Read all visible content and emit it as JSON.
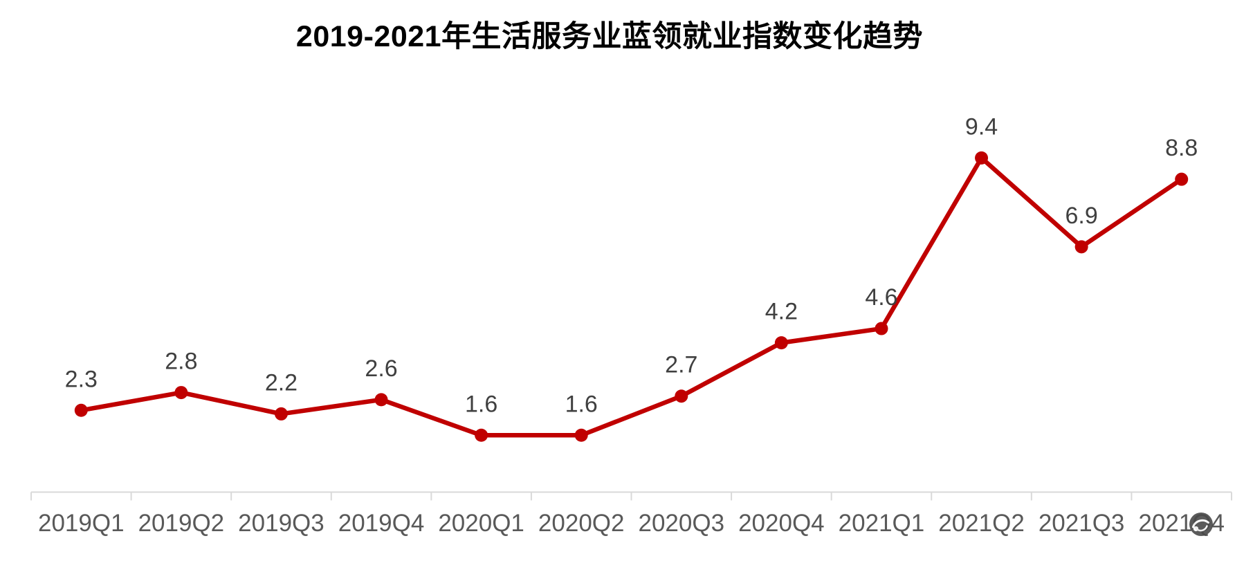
{
  "chart_data": {
    "type": "line",
    "title": "2019-2021年生活服务业蓝领就业指数变化趋势",
    "categories": [
      "2019Q1",
      "2019Q2",
      "2019Q3",
      "2019Q4",
      "2020Q1",
      "2020Q2",
      "2020Q3",
      "2020Q4",
      "2021Q1",
      "2021Q2",
      "2021Q3",
      "2021Q4"
    ],
    "values": [
      2.3,
      2.8,
      2.2,
      2.6,
      1.6,
      1.6,
      2.7,
      4.2,
      4.6,
      9.4,
      6.9,
      8.8
    ],
    "xlabel": "",
    "ylabel": "",
    "ylim": [
      0,
      10
    ],
    "grid": false,
    "legend_position": "none",
    "y_axis_visible": false,
    "data_labels_visible": true,
    "colors": {
      "line": "#c00000",
      "marker": "#c00000",
      "data_label": "#404040",
      "axis_label": "#595959",
      "axis_line": "#d9d9d9",
      "title": "#000000",
      "background": "#ffffff"
    }
  },
  "watermark": {
    "icon": "swirl-logo-icon",
    "overlaps_label": "2021Q4"
  }
}
